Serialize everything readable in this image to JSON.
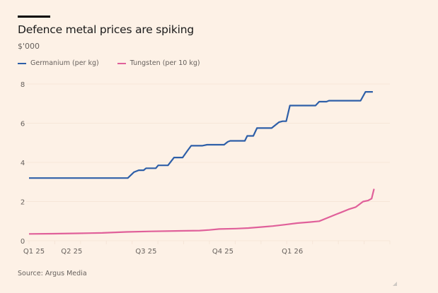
{
  "header": {
    "title": "Defence metal prices are spiking",
    "subtitle": "$'000"
  },
  "footer": {
    "source": "Source: Argus Media"
  },
  "colors": {
    "background": "#fdf1e6",
    "germanium": "#2e5fa8",
    "tungsten": "#e0609a",
    "gridline": "#f6e6d8"
  },
  "chart_data": {
    "type": "line",
    "title": "Defence metal prices are spiking",
    "ylabel": "$'000",
    "xlabel": "",
    "ylim": [
      0,
      8
    ],
    "yticks": [
      0,
      2,
      4,
      6,
      8
    ],
    "ytick_labels": [
      "0",
      "2",
      "4",
      "6",
      "8"
    ],
    "xlim": [
      0,
      14.8
    ],
    "xticks": [
      0,
      1.75,
      4.8,
      7.95,
      10.8
    ],
    "xtick_labels": [
      "Q1 25",
      "Q2 25",
      "Q3 25",
      "Q4 25",
      "Q1 26"
    ],
    "x_unit": "months since start of Q1 25 (approx.)",
    "grid": true,
    "legend_position": "top-left",
    "series": [
      {
        "name": "Germanium (per kg)",
        "color": "#2e5fa8",
        "points": [
          [
            0,
            3.2
          ],
          [
            4.05,
            3.2
          ],
          [
            4.3,
            3.5
          ],
          [
            4.5,
            3.6
          ],
          [
            4.7,
            3.6
          ],
          [
            4.8,
            3.7
          ],
          [
            5.2,
            3.7
          ],
          [
            5.3,
            3.85
          ],
          [
            5.7,
            3.85
          ],
          [
            5.95,
            4.25
          ],
          [
            6.3,
            4.25
          ],
          [
            6.5,
            4.6
          ],
          [
            6.65,
            4.85
          ],
          [
            7.1,
            4.85
          ],
          [
            7.3,
            4.9
          ],
          [
            8.0,
            4.9
          ],
          [
            8.15,
            5.05
          ],
          [
            8.25,
            5.1
          ],
          [
            8.85,
            5.1
          ],
          [
            8.95,
            5.35
          ],
          [
            9.2,
            5.35
          ],
          [
            9.35,
            5.75
          ],
          [
            9.95,
            5.75
          ],
          [
            10.25,
            6.05
          ],
          [
            10.4,
            6.1
          ],
          [
            10.55,
            6.1
          ],
          [
            10.7,
            6.9
          ],
          [
            11.75,
            6.9
          ],
          [
            11.9,
            7.1
          ],
          [
            12.2,
            7.1
          ],
          [
            12.3,
            7.15
          ],
          [
            13.6,
            7.15
          ],
          [
            13.8,
            7.6
          ],
          [
            14.1,
            7.6
          ]
        ]
      },
      {
        "name": "Tungsten (per 10 kg)",
        "color": "#e0609a",
        "points": [
          [
            0,
            0.35
          ],
          [
            1.0,
            0.36
          ],
          [
            2.0,
            0.38
          ],
          [
            3.0,
            0.4
          ],
          [
            4.0,
            0.45
          ],
          [
            5.0,
            0.48
          ],
          [
            6.0,
            0.5
          ],
          [
            7.0,
            0.52
          ],
          [
            7.4,
            0.55
          ],
          [
            7.8,
            0.6
          ],
          [
            8.5,
            0.62
          ],
          [
            9.0,
            0.65
          ],
          [
            9.5,
            0.7
          ],
          [
            10.0,
            0.75
          ],
          [
            10.5,
            0.82
          ],
          [
            11.0,
            0.9
          ],
          [
            11.5,
            0.95
          ],
          [
            11.9,
            1.0
          ],
          [
            12.2,
            1.15
          ],
          [
            12.6,
            1.35
          ],
          [
            12.8,
            1.45
          ],
          [
            13.1,
            1.6
          ],
          [
            13.4,
            1.72
          ],
          [
            13.7,
            2.0
          ],
          [
            13.9,
            2.05
          ],
          [
            14.05,
            2.15
          ],
          [
            14.15,
            2.65
          ]
        ]
      }
    ]
  }
}
